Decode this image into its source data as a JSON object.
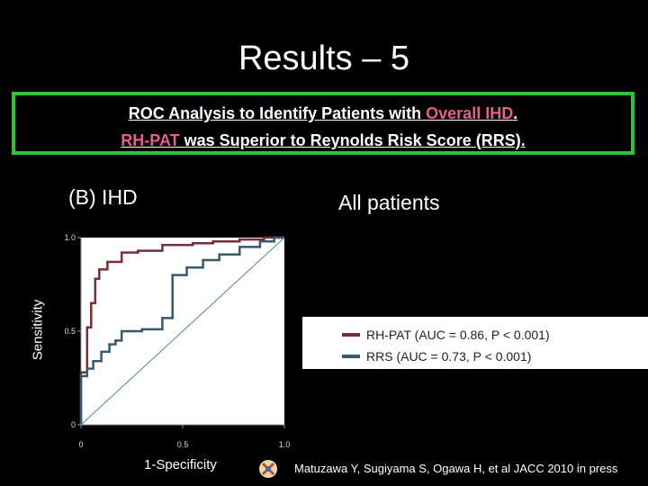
{
  "slide": {
    "title": "Results – 5",
    "box_line1_pre": "ROC Analysis to Identify Patients with ",
    "box_line1_em": "Overall IHD",
    "box_line1_post": ".",
    "box_line2_em": "RH-PAT",
    "box_line2_post": " was Superior to Reynolds Risk Score (RRS).",
    "panel_label": "(B) IHD",
    "group_label": "All patients",
    "citation": "Matuzawa Y, Sugiyama S, Ogawa H, et al JACC 2010 in press"
  },
  "colors": {
    "box_border": "#2fc33a",
    "highlight": "#e2608a",
    "rh_pat": "#7a2f36",
    "rrs": "#37596f",
    "diagonal": "#4f8a8a"
  },
  "chart_data": {
    "type": "line",
    "xlabel": "1-Specificity",
    "ylabel": "Sensitivity",
    "xlim": [
      0,
      1
    ],
    "ylim": [
      0,
      1
    ],
    "x_ticks": [
      {
        "v": 0,
        "label": "0"
      },
      {
        "v": 0.5,
        "label": "0.5"
      },
      {
        "v": 1,
        "label": "1.0"
      }
    ],
    "y_ticks": [
      {
        "v": 0,
        "label": "0"
      },
      {
        "v": 0.5,
        "label": "0.5"
      },
      {
        "v": 1,
        "label": "1.0"
      }
    ],
    "legend_position": "right",
    "series": [
      {
        "name": "RH-PAT (AUC = 0.86, P < 0.001)",
        "color": "#7a2f36",
        "points": [
          [
            0,
            0
          ],
          [
            0,
            0.28
          ],
          [
            0.03,
            0.28
          ],
          [
            0.03,
            0.52
          ],
          [
            0.05,
            0.52
          ],
          [
            0.05,
            0.65
          ],
          [
            0.07,
            0.65
          ],
          [
            0.07,
            0.78
          ],
          [
            0.09,
            0.78
          ],
          [
            0.09,
            0.83
          ],
          [
            0.13,
            0.83
          ],
          [
            0.13,
            0.87
          ],
          [
            0.2,
            0.87
          ],
          [
            0.2,
            0.92
          ],
          [
            0.28,
            0.92
          ],
          [
            0.28,
            0.93
          ],
          [
            0.4,
            0.93
          ],
          [
            0.4,
            0.96
          ],
          [
            0.55,
            0.96
          ],
          [
            0.55,
            0.97
          ],
          [
            0.65,
            0.97
          ],
          [
            0.65,
            0.98
          ],
          [
            0.78,
            0.98
          ],
          [
            0.78,
            0.99
          ],
          [
            0.9,
            0.99
          ],
          [
            0.9,
            1
          ],
          [
            1,
            1
          ]
        ]
      },
      {
        "name": "RRS (AUC = 0.73, P < 0.001)",
        "color": "#37596f",
        "points": [
          [
            0,
            0
          ],
          [
            0,
            0.26
          ],
          [
            0.03,
            0.26
          ],
          [
            0.03,
            0.3
          ],
          [
            0.06,
            0.3
          ],
          [
            0.06,
            0.34
          ],
          [
            0.1,
            0.34
          ],
          [
            0.1,
            0.39
          ],
          [
            0.14,
            0.39
          ],
          [
            0.14,
            0.43
          ],
          [
            0.17,
            0.43
          ],
          [
            0.17,
            0.45
          ],
          [
            0.2,
            0.45
          ],
          [
            0.2,
            0.5
          ],
          [
            0.3,
            0.5
          ],
          [
            0.3,
            0.51
          ],
          [
            0.4,
            0.51
          ],
          [
            0.4,
            0.57
          ],
          [
            0.45,
            0.57
          ],
          [
            0.45,
            0.8
          ],
          [
            0.52,
            0.8
          ],
          [
            0.52,
            0.84
          ],
          [
            0.6,
            0.84
          ],
          [
            0.6,
            0.88
          ],
          [
            0.68,
            0.88
          ],
          [
            0.68,
            0.91
          ],
          [
            0.78,
            0.91
          ],
          [
            0.78,
            0.95
          ],
          [
            0.88,
            0.95
          ],
          [
            0.88,
            0.98
          ],
          [
            0.95,
            0.98
          ],
          [
            0.95,
            1
          ],
          [
            1,
            1
          ]
        ]
      },
      {
        "name": "",
        "color": "#4f8a8a",
        "points": [
          [
            0,
            0
          ],
          [
            1,
            1
          ]
        ]
      }
    ]
  }
}
